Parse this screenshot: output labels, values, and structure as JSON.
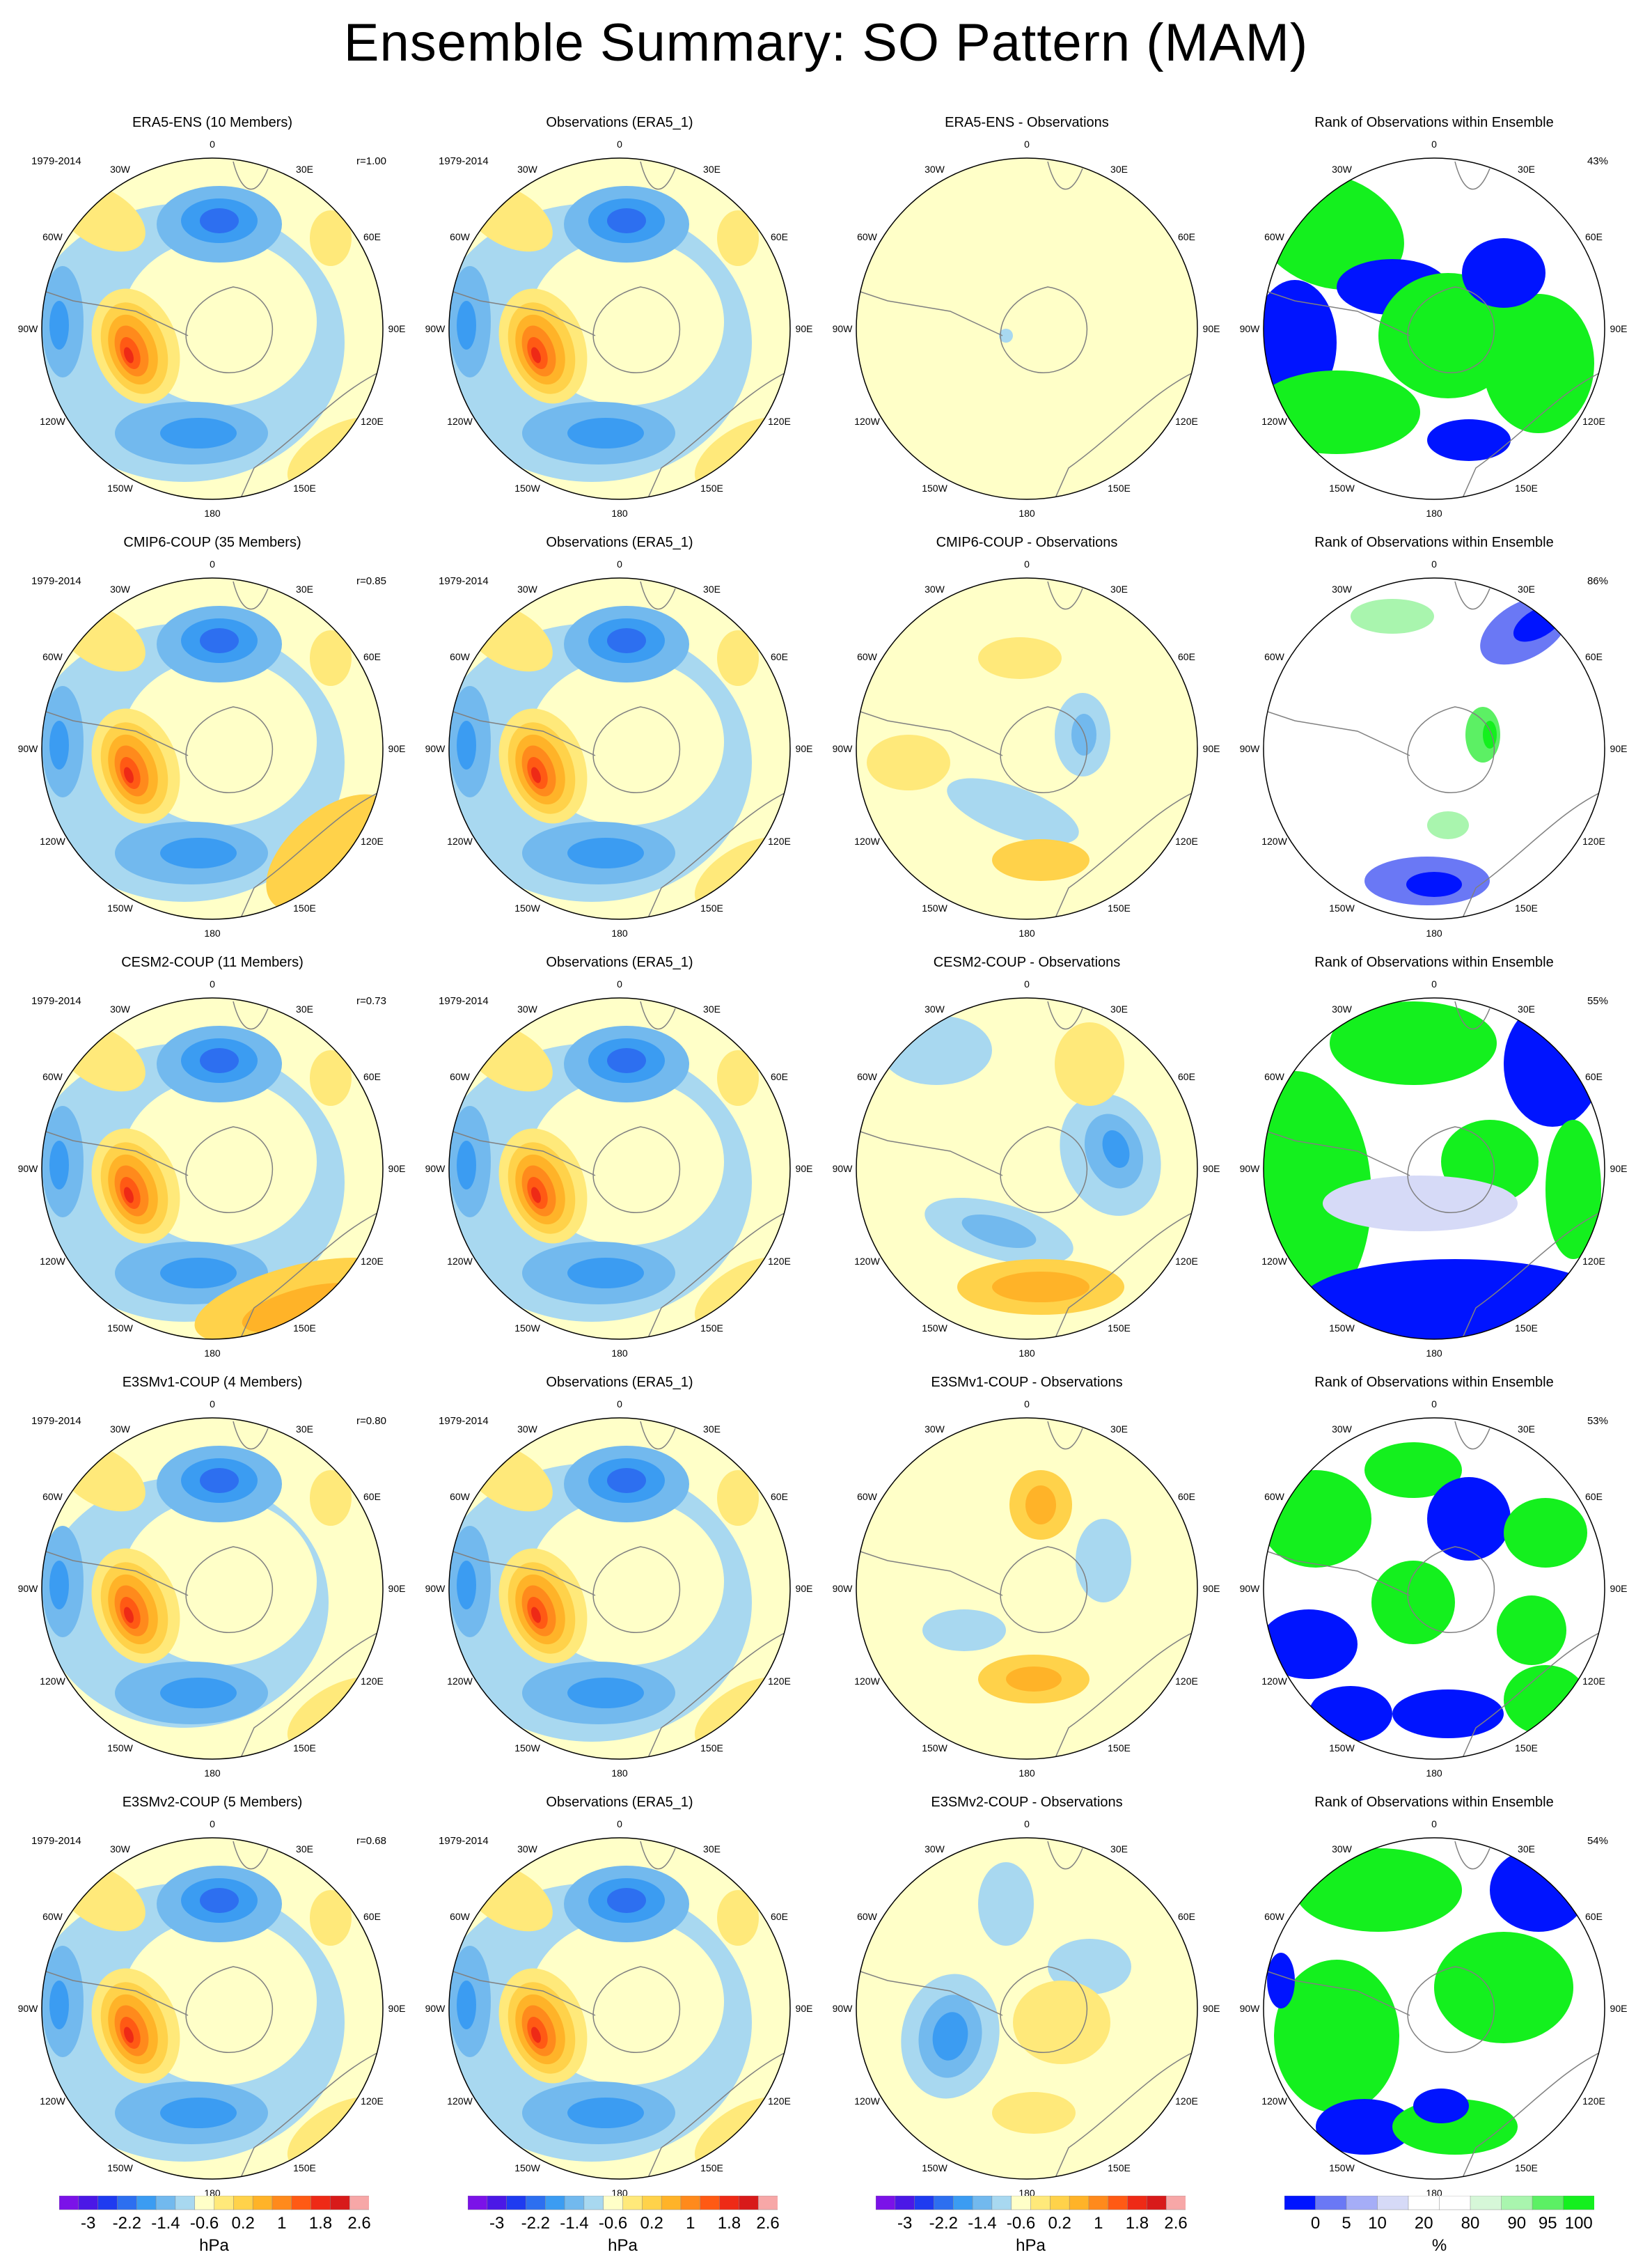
{
  "title": "Ensemble Summary: SO Pattern (MAM)",
  "lon_labels": [
    "0",
    "30E",
    "60E",
    "90E",
    "120E",
    "150E",
    "180",
    "150W",
    "120W",
    "90W",
    "60W",
    "30W"
  ],
  "colors": {
    "hpa_levels": [
      "#7b12e8",
      "#4b18e6",
      "#1f3bf0",
      "#2d6ff0",
      "#3b9cf2",
      "#72b9ee",
      "#a8d8f0",
      "#ffffc8",
      "#ffe97a",
      "#ffd24a",
      "#ffb328",
      "#ff8a1c",
      "#ff5a14",
      "#ee2a16",
      "#d81a1a",
      "#f7a7a7"
    ],
    "rank_levels": [
      "#0014ff",
      "#6a78f5",
      "#a5adf7",
      "#d6daf7",
      "#ffffff",
      "#ffffff",
      "#d6f7d8",
      "#a9f5ae",
      "#5cf064",
      "#14f01e"
    ],
    "land_outline": "#808080"
  },
  "colorbars": {
    "hpa": {
      "ticks": [
        "-3",
        "-2.2",
        "-1.4",
        "-0.6",
        "0.2",
        "1",
        "1.8",
        "2.6"
      ],
      "unit": "hPa"
    },
    "rank": {
      "ticks": [
        "0",
        "5",
        "10",
        "20",
        "80",
        "90",
        "95",
        "100"
      ],
      "unit": "%"
    }
  },
  "chart_data": {
    "type": "heatmap",
    "projection": "south polar stereographic",
    "rows": [
      {
        "period": "1979-2014",
        "panels": [
          {
            "kind": "model",
            "title": "ERA5-ENS (10 Members)",
            "corner": "r=1.00"
          },
          {
            "kind": "obs",
            "title": "Observations (ERA5_1)",
            "corner": ""
          },
          {
            "kind": "diff",
            "title": "ERA5-ENS - Observations",
            "corner": ""
          },
          {
            "kind": "rank",
            "title": "Rank of Observations within Ensemble",
            "corner": "43%"
          }
        ]
      },
      {
        "period": "1979-2014",
        "panels": [
          {
            "kind": "model",
            "title": "CMIP6-COUP (35 Members)",
            "corner": "r=0.85"
          },
          {
            "kind": "obs",
            "title": "Observations (ERA5_1)",
            "corner": ""
          },
          {
            "kind": "diff",
            "title": "CMIP6-COUP - Observations",
            "corner": ""
          },
          {
            "kind": "rank",
            "title": "Rank of Observations within Ensemble",
            "corner": "86%"
          }
        ]
      },
      {
        "period": "1979-2014",
        "panels": [
          {
            "kind": "model",
            "title": "CESM2-COUP (11 Members)",
            "corner": "r=0.73"
          },
          {
            "kind": "obs",
            "title": "Observations (ERA5_1)",
            "corner": ""
          },
          {
            "kind": "diff",
            "title": "CESM2-COUP - Observations",
            "corner": ""
          },
          {
            "kind": "rank",
            "title": "Rank of Observations within Ensemble",
            "corner": "55%"
          }
        ]
      },
      {
        "period": "1979-2014",
        "panels": [
          {
            "kind": "model",
            "title": "E3SMv1-COUP (4 Members)",
            "corner": "r=0.80"
          },
          {
            "kind": "obs",
            "title": "Observations (ERA5_1)",
            "corner": ""
          },
          {
            "kind": "diff",
            "title": "E3SMv1-COUP - Observations",
            "corner": ""
          },
          {
            "kind": "rank",
            "title": "Rank of Observations within Ensemble",
            "corner": "53%"
          }
        ]
      },
      {
        "period": "1979-2014",
        "panels": [
          {
            "kind": "model",
            "title": "E3SMv2-COUP (5 Members)",
            "corner": "r=0.68"
          },
          {
            "kind": "obs",
            "title": "Observations (ERA5_1)",
            "corner": ""
          },
          {
            "kind": "diff",
            "title": "E3SMv2-COUP - Observations",
            "corner": ""
          },
          {
            "kind": "rank",
            "title": "Rank of Observations within Ensemble",
            "corner": "54%"
          }
        ]
      }
    ]
  }
}
